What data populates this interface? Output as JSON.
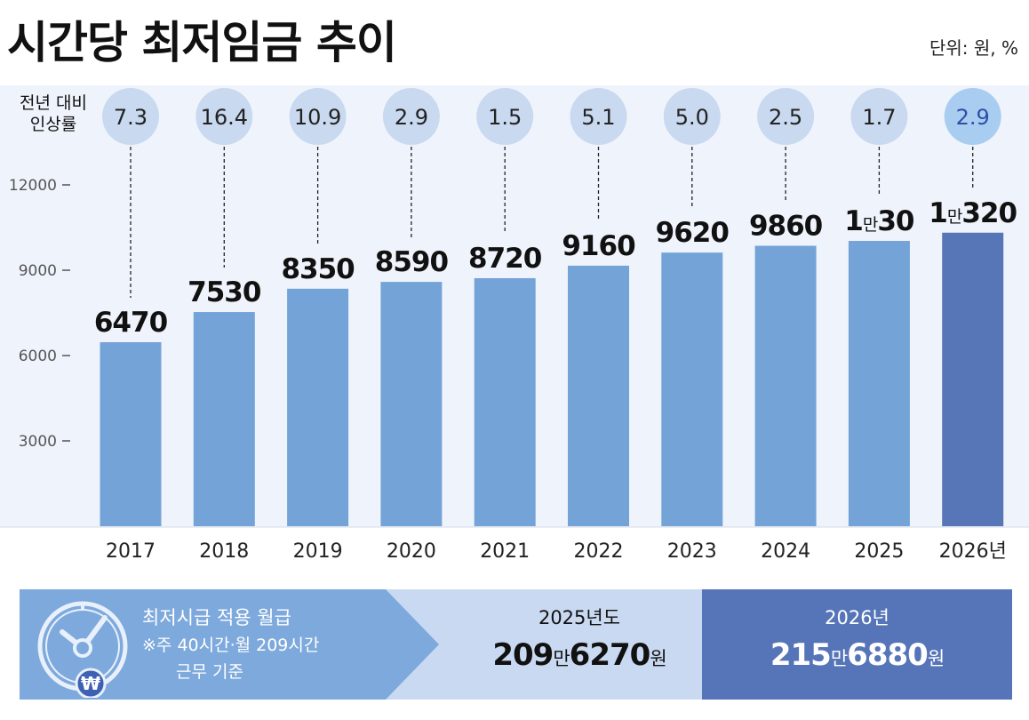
{
  "header": {
    "title": "시간당 최저임금 추이",
    "unit": "단위: 원, %"
  },
  "rate_label": [
    "전년 대비",
    "인상률"
  ],
  "chart_data": {
    "type": "bar",
    "title": "시간당 최저임금 추이",
    "xlabel": "",
    "ylabel": "",
    "categories": [
      "2017",
      "2018",
      "2019",
      "2020",
      "2021",
      "2022",
      "2023",
      "2024",
      "2025",
      "2026년"
    ],
    "values": [
      6470,
      7530,
      8350,
      8590,
      8720,
      9160,
      9620,
      9860,
      10030,
      10320
    ],
    "value_labels": [
      {
        "big": "6470",
        "man": "",
        "rest": ""
      },
      {
        "big": "7530",
        "man": "",
        "rest": ""
      },
      {
        "big": "8350",
        "man": "",
        "rest": ""
      },
      {
        "big": "8590",
        "man": "",
        "rest": ""
      },
      {
        "big": "8720",
        "man": "",
        "rest": ""
      },
      {
        "big": "9160",
        "man": "",
        "rest": ""
      },
      {
        "big": "9620",
        "man": "",
        "rest": ""
      },
      {
        "big": "9860",
        "man": "",
        "rest": ""
      },
      {
        "big": "1",
        "man": "만",
        "rest": "30"
      },
      {
        "big": "1",
        "man": "만",
        "rest": "320"
      }
    ],
    "rates": [
      "7.3",
      "16.4",
      "10.9",
      "2.9",
      "1.5",
      "5.1",
      "5.0",
      "2.5",
      "1.7",
      "2.9"
    ],
    "y_ticks": [
      3000,
      6000,
      9000,
      12000
    ],
    "ylim": [
      0,
      12000
    ],
    "grid": false,
    "colors": {
      "bar": "#74a3d8",
      "bar_highlight": "#5676b7",
      "rate_circle": "#c9d9f0",
      "rate_circle_highlight": "#a9cdf1",
      "rate_text_highlight": "#2f4fa6"
    }
  },
  "monthly": {
    "title": "최저시급 적용 월급",
    "note_line1": "※주 40시간·월 209시간",
    "note_line2": "근무 기준",
    "icon": "clock-won-icon",
    "y2025": {
      "label": "2025년도",
      "big": "209",
      "man": "만",
      "rest": "6270",
      "won": "원"
    },
    "y2026": {
      "label": "2026년",
      "big": "215",
      "man": "만",
      "rest": "6880",
      "won": "원"
    }
  }
}
